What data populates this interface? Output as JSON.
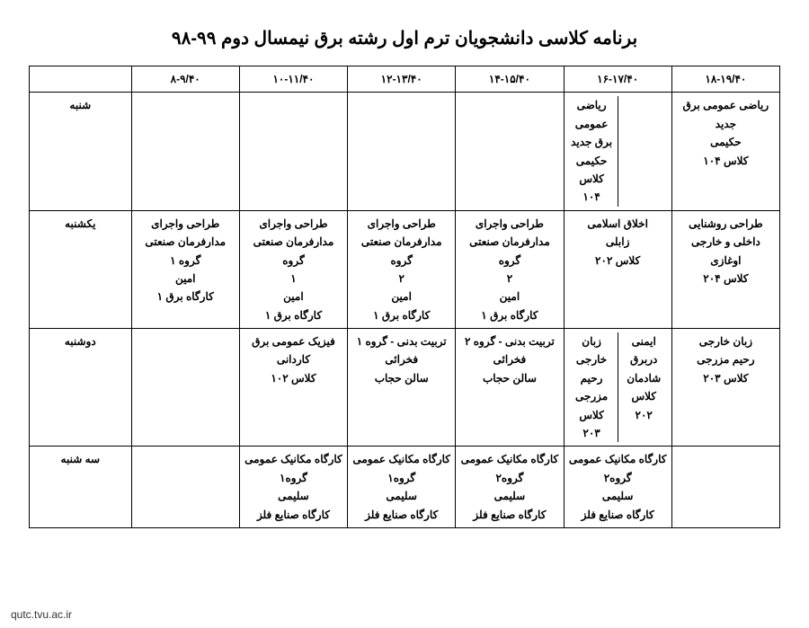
{
  "title": "برنامه کلاسی دانشجویان ترم اول رشته برق نیمسال دوم ۹۹-۹۸",
  "footer": "qutc.tvu.ac.ir",
  "time_headers": [
    "۱۸-۱۹/۴۰",
    "۱۶-۱۷/۴۰",
    "۱۴-۱۵/۴۰",
    "۱۲-۱۳/۴۰",
    "۱۰-۱۱/۴۰",
    "۸-۹/۴۰"
  ],
  "days": [
    "شنبه",
    "یکشنبه",
    "دوشنبه",
    "سه شنبه"
  ],
  "rows": {
    "sat": {
      "c1": "ریاضی عمومی برق\nجدید\nحکیمی\nکلاس ۱۰۴",
      "c2_right": "",
      "c2_left": "ریاضی\nعمومی\nبرق جدید\nحکیمی\nکلاس\n۱۰۴",
      "c3": "",
      "c4": "",
      "c5": "",
      "c6": ""
    },
    "sun": {
      "c1": "طراحی روشنایی\nداخلی و خارجی\nاوغازی\nکلاس ۲۰۴",
      "c2": "اخلاق اسلامی\nزابلی\nکلاس ۲۰۲",
      "c3": "طراحی واجرای\nمدارفرمان صنعتی گروه\n۲\nامین\nکارگاه برق ۱",
      "c4": "طراحی واجرای\nمدارفرمان صنعتی گروه\n۲\nامین\nکارگاه برق ۱",
      "c5": "طراحی واجرای\nمدارفرمان صنعتی گروه\n۱\nامین\nکارگاه برق ۱",
      "c6": "طراحی واجرای\nمدارفرمان صنعتی\nگروه ۱\nامین\nکارگاه برق ۱"
    },
    "mon": {
      "c1": "زبان خارجی\nرحیم مزرجی\nکلاس ۲۰۳",
      "c2_right": "ایمنی\nدربرق\nشادمان\nکلاس\n۲۰۲",
      "c2_left": "زبان\nخارجی\nرحیم\nمزرجی\nکلاس\n۲۰۳",
      "c3": "تربیت بدنی - گروه ۲\nفخرائی\nسالن حجاب",
      "c4": "تربیت بدنی - گروه ۱\nفخرائی\nسالن حجاب",
      "c5": "فیزیک عمومی برق\nکاردانی\nکلاس ۱۰۲",
      "c6": ""
    },
    "tue": {
      "c1": "",
      "c2": "کارگاه مکانیک عمومی\nگروه۲\nسلیمی\nکارگاه صنایع فلز",
      "c3": "کارگاه مکانیک عمومی\nگروه۲\nسلیمی\nکارگاه صنایع فلز",
      "c4": "کارگاه مکانیک عمومی\nگروه۱\nسلیمی\nکارگاه صنایع فلز",
      "c5": "کارگاه مکانیک عمومی\nگروه۱\nسلیمی\nکارگاه صنایع فلز",
      "c6": ""
    }
  }
}
